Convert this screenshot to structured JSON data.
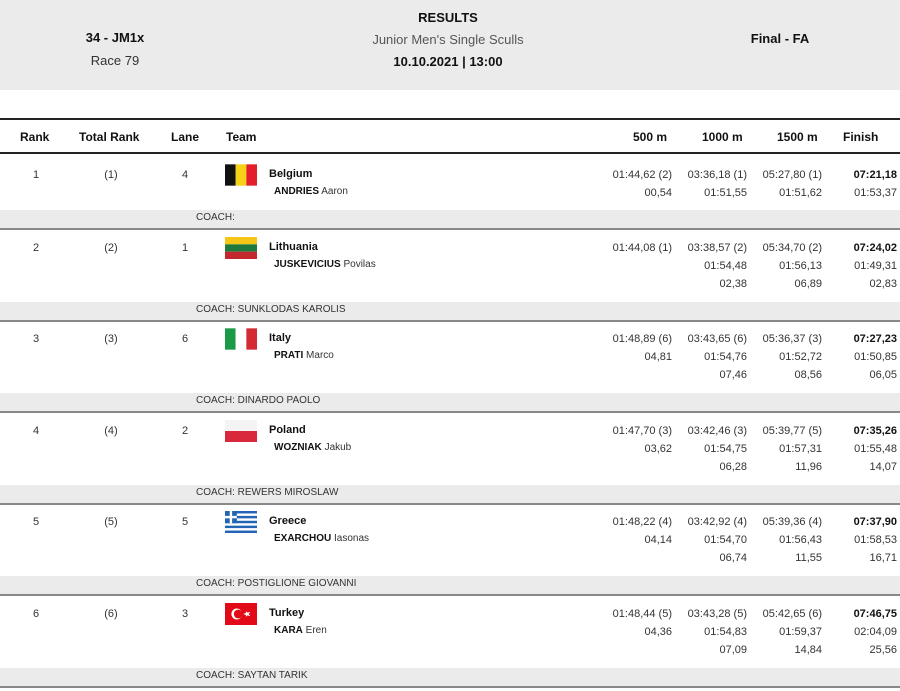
{
  "header": {
    "event_code": "34 - JM1x",
    "race": "Race 79",
    "title": "RESULTS",
    "event_name": "Junior Men's Single Sculls",
    "datetime": "10.10.2021 | 13:00",
    "phase": "Final - FA"
  },
  "columns": {
    "rank": "Rank",
    "total_rank": "Total Rank",
    "lane": "Lane",
    "team": "Team",
    "s500": "500 m",
    "s1000": "1000 m",
    "s1500": "1500 m",
    "finish": "Finish"
  },
  "rows": [
    {
      "rank": "1",
      "total_rank": "(1)",
      "lane": "4",
      "country": "Belgium",
      "flag": "belgium-flag",
      "surname": "ANDRIES",
      "firstname": "Aaron",
      "s500": [
        "01:44,62 (2)",
        "00,54",
        ""
      ],
      "s1000": [
        "03:36,18 (1)",
        "01:51,55",
        ""
      ],
      "s1500": [
        "05:27,80 (1)",
        "01:51,62",
        ""
      ],
      "finish": [
        "07:21,18",
        "01:53,37",
        ""
      ],
      "coach": "COACH:"
    },
    {
      "rank": "2",
      "total_rank": "(2)",
      "lane": "1",
      "country": "Lithuania",
      "flag": "lithuania-flag",
      "surname": "JUSKEVICIUS",
      "firstname": "Povilas",
      "s500": [
        "01:44,08 (1)",
        "",
        ""
      ],
      "s1000": [
        "03:38,57 (2)",
        "01:54,48",
        "02,38"
      ],
      "s1500": [
        "05:34,70 (2)",
        "01:56,13",
        "06,89"
      ],
      "finish": [
        "07:24,02",
        "01:49,31",
        "02,83"
      ],
      "coach": "COACH: SUNKLODAS KAROLIS"
    },
    {
      "rank": "3",
      "total_rank": "(3)",
      "lane": "6",
      "country": "Italy",
      "flag": "italy-flag",
      "surname": "PRATI",
      "firstname": "Marco",
      "s500": [
        "01:48,89 (6)",
        "04,81",
        ""
      ],
      "s1000": [
        "03:43,65 (6)",
        "01:54,76",
        "07,46"
      ],
      "s1500": [
        "05:36,37 (3)",
        "01:52,72",
        "08,56"
      ],
      "finish": [
        "07:27,23",
        "01:50,85",
        "06,05"
      ],
      "coach": "COACH: DINARDO PAOLO"
    },
    {
      "rank": "4",
      "total_rank": "(4)",
      "lane": "2",
      "country": "Poland",
      "flag": "poland-flag",
      "surname": "WOZNIAK",
      "firstname": "Jakub",
      "s500": [
        "01:47,70 (3)",
        "03,62",
        ""
      ],
      "s1000": [
        "03:42,46 (3)",
        "01:54,75",
        "06,28"
      ],
      "s1500": [
        "05:39,77 (5)",
        "01:57,31",
        "11,96"
      ],
      "finish": [
        "07:35,26",
        "01:55,48",
        "14,07"
      ],
      "coach": "COACH: REWERS MIROSLAW"
    },
    {
      "rank": "5",
      "total_rank": "(5)",
      "lane": "5",
      "country": "Greece",
      "flag": "greece-flag",
      "surname": "EXARCHOU",
      "firstname": "Iasonas",
      "s500": [
        "01:48,22 (4)",
        "04,14",
        ""
      ],
      "s1000": [
        "03:42,92 (4)",
        "01:54,70",
        "06,74"
      ],
      "s1500": [
        "05:39,36 (4)",
        "01:56,43",
        "11,55"
      ],
      "finish": [
        "07:37,90",
        "01:58,53",
        "16,71"
      ],
      "coach": "COACH: POSTIGLIONE GIOVANNI"
    },
    {
      "rank": "6",
      "total_rank": "(6)",
      "lane": "3",
      "country": "Turkey",
      "flag": "turkey-flag",
      "surname": "KARA",
      "firstname": "Eren",
      "s500": [
        "01:48,44 (5)",
        "04,36",
        ""
      ],
      "s1000": [
        "03:43,28 (5)",
        "01:54,83",
        "07,09"
      ],
      "s1500": [
        "05:42,65 (6)",
        "01:59,37",
        "14,84"
      ],
      "finish": [
        "07:46,75",
        "02:04,09",
        "25,56"
      ],
      "coach": "COACH: SAYTAN TARIK"
    }
  ],
  "colors": {
    "header_bg": "#ebebeb",
    "coach_bg": "#ebebeb",
    "text": "#222222"
  }
}
